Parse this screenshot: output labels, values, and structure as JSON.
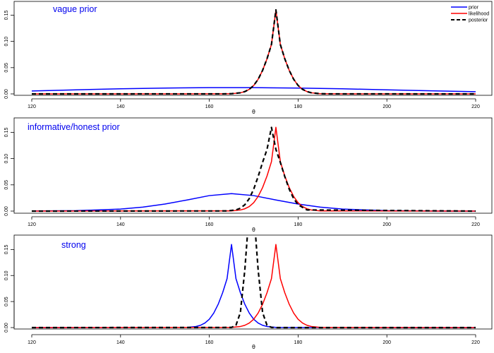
{
  "chart_data": [
    {
      "type": "line",
      "title": "vague prior",
      "xlabel": "θ",
      "ylabel": "",
      "xlim": [
        120,
        220
      ],
      "ylim": [
        0,
        0.16
      ],
      "xticks": [
        "120",
        "140",
        "160",
        "180",
        "200",
        "220"
      ],
      "yticks": [
        "0.00",
        "0.05",
        "0.10",
        "0.15"
      ],
      "legend": {
        "placement": "top-right",
        "entries": [
          {
            "label": "prior",
            "color": "#0000ff",
            "style": "solid"
          },
          {
            "label": "likelihood",
            "color": "#ff0000",
            "style": "solid"
          },
          {
            "label": "posterior",
            "color": "#000000",
            "style": "dashed"
          }
        ]
      },
      "series": [
        {
          "name": "prior",
          "color": "#0000ff",
          "style": "solid",
          "x": [
            120,
            130,
            140,
            150,
            160,
            165,
            170,
            180,
            190,
            200,
            210,
            220
          ],
          "y": [
            0.0055,
            0.0078,
            0.0097,
            0.0111,
            0.0119,
            0.012,
            0.0119,
            0.0111,
            0.0097,
            0.0078,
            0.0059,
            0.0042
          ]
        },
        {
          "name": "likelihood",
          "color": "#ff0000",
          "style": "solid",
          "x": [
            120,
            163,
            165,
            167,
            168,
            169,
            170,
            171,
            172,
            173,
            174,
            175,
            176,
            177,
            178,
            179,
            180,
            181,
            182,
            183,
            185,
            187,
            220
          ],
          "y": [
            0,
            0.0001,
            0.0004,
            0.0021,
            0.0044,
            0.0087,
            0.0161,
            0.0279,
            0.0448,
            0.0669,
            0.0941,
            0.1596,
            0.0941,
            0.0669,
            0.0448,
            0.0279,
            0.0161,
            0.0087,
            0.0044,
            0.0021,
            0.0004,
            0.0001,
            0
          ]
        },
        {
          "name": "posterior",
          "color": "#000000",
          "style": "dashed",
          "x": [
            120,
            163,
            165,
            167,
            168,
            169,
            170,
            171,
            172,
            173,
            174,
            175,
            176,
            177,
            178,
            179,
            180,
            181,
            182,
            183,
            185,
            187,
            220
          ],
          "y": [
            0,
            0.0001,
            0.0004,
            0.0021,
            0.0044,
            0.0087,
            0.0161,
            0.0279,
            0.0448,
            0.0669,
            0.0941,
            0.16,
            0.0941,
            0.0669,
            0.0448,
            0.0279,
            0.0161,
            0.0087,
            0.0044,
            0.0021,
            0.0004,
            0.0001,
            0
          ]
        }
      ]
    },
    {
      "type": "line",
      "title": "informative/honest prior",
      "xlabel": "θ",
      "ylabel": "",
      "xlim": [
        120,
        220
      ],
      "ylim": [
        0,
        0.16
      ],
      "xticks": [
        "120",
        "140",
        "160",
        "180",
        "200",
        "220"
      ],
      "yticks": [
        "0.00",
        "0.05",
        "0.10",
        "0.15"
      ],
      "series": [
        {
          "name": "prior",
          "color": "#0000ff",
          "style": "solid",
          "x": [
            120,
            130,
            140,
            145,
            150,
            155,
            160,
            165,
            170,
            175,
            180,
            185,
            190,
            200,
            210,
            220
          ],
          "y": [
            0.0001,
            0.0008,
            0.0038,
            0.0075,
            0.0134,
            0.0212,
            0.0295,
            0.0333,
            0.0295,
            0.0212,
            0.0134,
            0.0075,
            0.0038,
            0.0008,
            0.0001,
            0
          ]
        },
        {
          "name": "likelihood",
          "color": "#ff0000",
          "style": "solid",
          "x": [
            120,
            165,
            167,
            168,
            169,
            170,
            171,
            172,
            173,
            174,
            175,
            176,
            177,
            178,
            179,
            180,
            181,
            182,
            183,
            185,
            220
          ],
          "y": [
            0,
            0.0004,
            0.0021,
            0.0044,
            0.0087,
            0.0161,
            0.0279,
            0.0448,
            0.0669,
            0.0941,
            0.1596,
            0.0941,
            0.0669,
            0.0448,
            0.0279,
            0.0161,
            0.0087,
            0.0044,
            0.0021,
            0.0004,
            0
          ]
        },
        {
          "name": "posterior",
          "color": "#000000",
          "style": "dashed",
          "x": [
            120,
            164,
            166,
            167,
            168,
            169,
            170,
            171,
            172,
            173,
            174,
            175,
            176,
            177,
            178,
            179,
            180,
            182,
            220
          ],
          "y": [
            0,
            0.0003,
            0.0022,
            0.0055,
            0.0121,
            0.0238,
            0.0418,
            0.0658,
            0.0928,
            0.1175,
            0.1594,
            0.1175,
            0.0928,
            0.0658,
            0.0418,
            0.0238,
            0.0121,
            0.0022,
            0
          ]
        }
      ]
    },
    {
      "type": "line",
      "title": "strong",
      "xlabel": "θ",
      "ylabel": "",
      "xlim": [
        120,
        220
      ],
      "ylim": [
        0,
        0.16
      ],
      "xticks": [
        "120",
        "140",
        "160",
        "180",
        "200",
        "220"
      ],
      "yticks": [
        "0.00",
        "0.05",
        "0.10",
        "0.15"
      ],
      "series": [
        {
          "name": "prior",
          "color": "#0000ff",
          "style": "solid",
          "x": [
            120,
            155,
            157,
            158,
            159,
            160,
            161,
            162,
            163,
            164,
            165,
            166,
            167,
            168,
            169,
            170,
            171,
            172,
            173,
            175,
            220
          ],
          "y": [
            0,
            0.0004,
            0.0021,
            0.0044,
            0.0087,
            0.0161,
            0.0279,
            0.0448,
            0.0669,
            0.0941,
            0.1596,
            0.0941,
            0.0669,
            0.0448,
            0.0279,
            0.0161,
            0.0087,
            0.0044,
            0.0021,
            0.0004,
            0
          ]
        },
        {
          "name": "likelihood",
          "color": "#ff0000",
          "style": "solid",
          "x": [
            120,
            165,
            167,
            168,
            169,
            170,
            171,
            172,
            173,
            174,
            175,
            176,
            177,
            178,
            179,
            180,
            181,
            182,
            183,
            185,
            220
          ],
          "y": [
            0,
            0.0004,
            0.0021,
            0.0044,
            0.0087,
            0.0161,
            0.0279,
            0.0448,
            0.0669,
            0.0941,
            0.1596,
            0.0941,
            0.0669,
            0.0448,
            0.0279,
            0.0161,
            0.0087,
            0.0044,
            0.0021,
            0.0004,
            0
          ]
        },
        {
          "name": "posterior",
          "color": "#000000",
          "style": "dashed",
          "x": [
            120,
            165,
            166,
            167,
            168,
            169,
            170,
            171,
            172,
            173,
            174,
            175,
            220
          ],
          "y": [
            0,
            0.0003,
            0.0044,
            0.0289,
            0.1108,
            0.2257,
            0.2257,
            0.1108,
            0.0289,
            0.0044,
            0.0003,
            0,
            0
          ]
        }
      ]
    }
  ]
}
